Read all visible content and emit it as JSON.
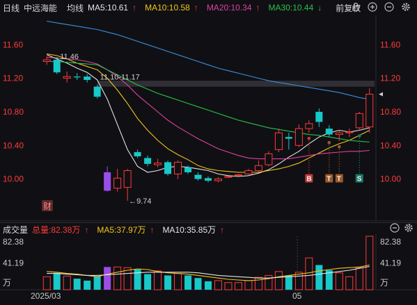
{
  "header": {
    "period": "日线",
    "stock_name": "中远海能",
    "avg_label": "均线",
    "ma5": "MA5:10.61",
    "ma10": "MA10:10.58",
    "ma20": "MA20:10.34",
    "ma30": "MA30:10.44",
    "arrow_up": "↑",
    "arrow_down": "↓",
    "adjust": "前复权",
    "icons": [
      "lock-icon",
      "plus-icon",
      "minus-icon",
      "gear-icon"
    ]
  },
  "price_axis": {
    "ticks": [
      "11.60",
      "11.20",
      "10.80",
      "10.40",
      "10.00"
    ]
  },
  "annotations": {
    "high": "←11.46",
    "gap": "11.10-11.17",
    "low": "←9.74",
    "finance_badge": "财",
    "signals": [
      "B",
      "T",
      "T",
      "S"
    ]
  },
  "volume": {
    "title": "成交量",
    "total": "总量:82.38万",
    "ma5": "MA5:37.97万",
    "ma10": "MA10:35.85万",
    "axis": [
      "82.38",
      "41.19",
      "万"
    ],
    "icons": [
      "minus-icon",
      "gear-icon"
    ]
  },
  "date_axis": {
    "labels": [
      "2025/03",
      "05"
    ]
  },
  "colors": {
    "up": "#ff3a3a",
    "down": "#19c8c8",
    "ma5": "#e6e6e6",
    "ma10": "#f5c518",
    "ma20": "#e040a0",
    "ma30": "#27c24c",
    "ma60": "#3a8fe0",
    "purple": "#9b4de8"
  },
  "chart_data": {
    "type": "candlestick",
    "y_range": [
      9.55,
      11.95
    ],
    "candles": [
      {
        "o": 11.4,
        "c": 11.42,
        "h": 11.46,
        "l": 11.36,
        "v": 20
      },
      {
        "o": 11.42,
        "c": 11.27,
        "h": 11.45,
        "l": 11.25,
        "v": 26
      },
      {
        "o": 11.2,
        "c": 11.22,
        "h": 11.28,
        "l": 11.15,
        "v": 21
      },
      {
        "o": 11.22,
        "c": 11.21,
        "h": 11.26,
        "l": 11.18,
        "v": 17
      },
      {
        "o": 11.22,
        "c": 11.18,
        "h": 11.25,
        "l": 11.15,
        "v": 14
      },
      {
        "o": 11.1,
        "c": 10.98,
        "h": 11.12,
        "l": 10.96,
        "v": 21
      },
      {
        "o": 10.08,
        "c": 9.86,
        "h": 10.15,
        "l": 9.85,
        "v": 35
      },
      {
        "o": 9.89,
        "c": 10.01,
        "h": 10.12,
        "l": 9.85,
        "v": 35
      },
      {
        "o": 9.9,
        "c": 10.1,
        "h": 10.12,
        "l": 9.74,
        "v": 34
      },
      {
        "o": 10.32,
        "c": 10.27,
        "h": 10.35,
        "l": 10.25,
        "v": 31
      },
      {
        "o": 10.25,
        "c": 10.18,
        "h": 10.28,
        "l": 10.15,
        "v": 24
      },
      {
        "o": 10.17,
        "c": 10.19,
        "h": 10.24,
        "l": 10.14,
        "v": 29
      },
      {
        "o": 10.2,
        "c": 10.06,
        "h": 10.22,
        "l": 10.04,
        "v": 22
      },
      {
        "o": 10.06,
        "c": 10.2,
        "h": 10.22,
        "l": 10.0,
        "v": 25
      },
      {
        "o": 10.14,
        "c": 10.08,
        "h": 10.16,
        "l": 10.06,
        "v": 22
      },
      {
        "o": 10.05,
        "c": 10.0,
        "h": 10.08,
        "l": 9.98,
        "v": 18
      },
      {
        "o": 10.01,
        "c": 9.98,
        "h": 10.03,
        "l": 9.96,
        "v": 13
      },
      {
        "o": 9.98,
        "c": 10.0,
        "h": 10.02,
        "l": 9.96,
        "v": 14
      },
      {
        "o": 10.03,
        "c": 10.03,
        "h": 10.05,
        "l": 10.01,
        "v": 11
      },
      {
        "o": 10.04,
        "c": 10.05,
        "h": 10.06,
        "l": 10.02,
        "v": 11
      },
      {
        "o": 10.06,
        "c": 10.1,
        "h": 10.12,
        "l": 10.05,
        "v": 14
      },
      {
        "o": 10.1,
        "c": 10.16,
        "h": 10.22,
        "l": 10.08,
        "v": 19
      },
      {
        "o": 10.17,
        "c": 10.3,
        "h": 10.33,
        "l": 10.15,
        "v": 22
      },
      {
        "o": 10.35,
        "c": 10.55,
        "h": 10.6,
        "l": 10.32,
        "v": 28
      },
      {
        "o": 10.5,
        "c": 10.48,
        "h": 10.55,
        "l": 10.35,
        "v": 22
      },
      {
        "o": 10.4,
        "c": 10.6,
        "h": 10.65,
        "l": 10.38,
        "v": 27
      },
      {
        "o": 10.6,
        "c": 10.66,
        "h": 10.7,
        "l": 10.55,
        "v": 49
      },
      {
        "o": 10.8,
        "c": 10.68,
        "h": 10.84,
        "l": 10.62,
        "v": 38
      },
      {
        "o": 10.6,
        "c": 10.53,
        "h": 10.64,
        "l": 10.5,
        "v": 30
      },
      {
        "o": 10.53,
        "c": 10.55,
        "h": 10.58,
        "l": 10.45,
        "v": 26
      },
      {
        "o": 10.55,
        "c": 10.56,
        "h": 10.6,
        "l": 10.5,
        "v": 20
      },
      {
        "o": 10.61,
        "c": 10.78,
        "h": 10.8,
        "l": 10.58,
        "v": 34
      },
      {
        "o": 10.62,
        "c": 11.01,
        "h": 11.08,
        "l": 10.55,
        "v": 82.38
      }
    ],
    "purple_index": 6,
    "ma_series": [
      {
        "name": "MA5",
        "values": [
          11.48,
          11.43,
          11.38,
          11.32,
          11.27,
          11.18,
          10.95,
          10.65,
          10.35,
          10.15,
          10.08,
          10.1,
          10.14,
          10.15,
          10.14,
          10.12,
          10.1,
          10.06,
          10.04,
          10.03,
          10.04,
          10.07,
          10.11,
          10.18,
          10.26,
          10.33,
          10.42,
          10.5,
          10.55,
          10.58,
          10.56,
          10.58,
          10.61
        ]
      },
      {
        "name": "MA10",
        "values": [
          11.49,
          11.47,
          11.43,
          11.38,
          11.34,
          11.3,
          11.2,
          11.06,
          10.9,
          10.72,
          10.58,
          10.46,
          10.36,
          10.29,
          10.23,
          10.16,
          10.12,
          10.1,
          10.09,
          10.08,
          10.08,
          10.08,
          10.1,
          10.12,
          10.15,
          10.19,
          10.25,
          10.31,
          10.37,
          10.42,
          10.46,
          10.52,
          10.58
        ]
      },
      {
        "name": "MA20",
        "values": [
          11.45,
          11.44,
          11.43,
          11.42,
          11.4,
          11.37,
          11.3,
          11.22,
          11.12,
          11.0,
          10.9,
          10.8,
          10.7,
          10.62,
          10.55,
          10.48,
          10.42,
          10.36,
          10.32,
          10.28,
          10.25,
          10.24,
          10.24,
          10.24,
          10.24,
          10.26,
          10.28,
          10.3,
          10.31,
          10.32,
          10.33,
          10.33,
          10.34
        ]
      },
      {
        "name": "MA30",
        "values": [
          11.4,
          11.4,
          11.39,
          11.38,
          11.37,
          11.36,
          11.3,
          11.24,
          11.18,
          11.12,
          11.07,
          11.02,
          10.98,
          10.94,
          10.9,
          10.86,
          10.82,
          10.78,
          10.74,
          10.7,
          10.67,
          10.64,
          10.61,
          10.59,
          10.57,
          10.55,
          10.53,
          10.52,
          10.5,
          10.48,
          10.46,
          10.45,
          10.44
        ]
      },
      {
        "name": "MA60",
        "values": [
          11.88,
          11.86,
          11.84,
          11.82,
          11.8,
          11.78,
          11.75,
          11.72,
          11.68,
          11.64,
          11.6,
          11.56,
          11.52,
          11.48,
          11.44,
          11.4,
          11.36,
          11.32,
          11.29,
          11.26,
          11.23,
          11.2,
          11.17,
          11.15,
          11.13,
          11.11,
          11.09,
          11.07,
          11.05,
          11.03,
          11.0,
          10.97,
          10.95
        ]
      }
    ],
    "volume_ma": [
      {
        "name": "MA5",
        "values": [
          28,
          27,
          25,
          24,
          22,
          20,
          24,
          27,
          30,
          32,
          31,
          28,
          26,
          25,
          24,
          22,
          20,
          18,
          16,
          15,
          14,
          15,
          17,
          20,
          22,
          24,
          26,
          29,
          31,
          33,
          34,
          35,
          37.97
        ]
      },
      {
        "name": "MA10",
        "values": [
          25,
          25,
          24,
          23,
          22,
          22,
          23,
          24,
          25,
          26,
          27,
          27,
          27,
          27,
          27,
          26,
          24,
          22,
          21,
          20,
          19,
          18,
          18,
          19,
          20,
          21,
          22,
          24,
          26,
          28,
          30,
          33,
          35.85
        ]
      }
    ],
    "volume_max": 82.38,
    "signal_indices": [
      26,
      28,
      29,
      31
    ]
  }
}
